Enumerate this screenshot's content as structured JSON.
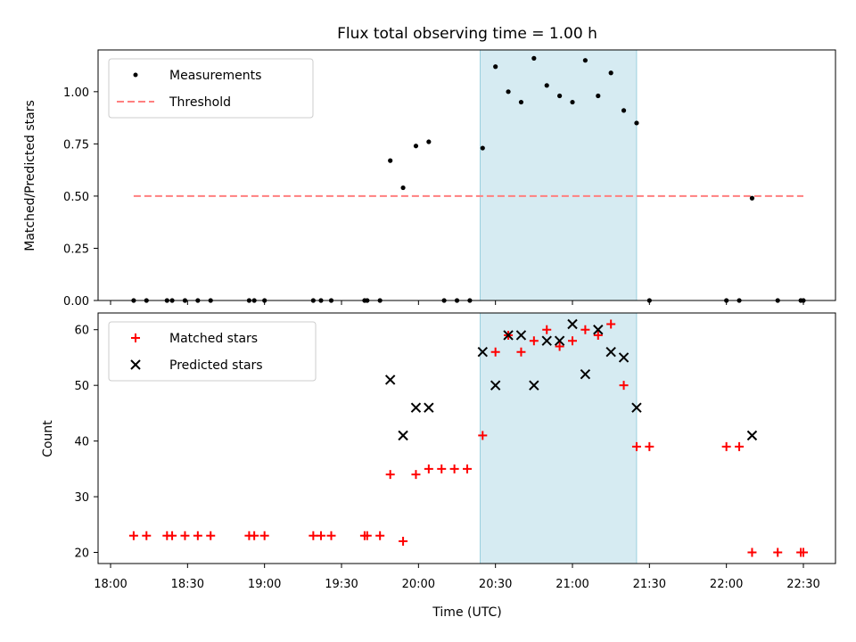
{
  "chart_data": [
    {
      "type": "scatter",
      "title": "Flux total observing time = 1.00 h",
      "ylabel": "Matched/Predicted stars",
      "xlabel": "",
      "ylim": [
        0,
        1.2
      ],
      "yticks": [
        "0.00",
        "0.25",
        "0.50",
        "0.75",
        "1.00"
      ],
      "legend": "top-left",
      "shaded_span": [
        "20:24",
        "21:25"
      ],
      "series": [
        {
          "name": "Measurements",
          "marker": "dot",
          "color": "#000000",
          "points": [
            [
              "18:09",
              0
            ],
            [
              "18:14",
              0
            ],
            [
              "18:22",
              0
            ],
            [
              "18:24",
              0
            ],
            [
              "18:29",
              0
            ],
            [
              "18:34",
              0
            ],
            [
              "18:39",
              0
            ],
            [
              "18:54",
              0
            ],
            [
              "18:56",
              0
            ],
            [
              "19:00",
              0
            ],
            [
              "19:19",
              0
            ],
            [
              "19:22",
              0
            ],
            [
              "19:26",
              0
            ],
            [
              "19:39",
              0
            ],
            [
              "19:40",
              0
            ],
            [
              "19:45",
              0
            ],
            [
              "19:49",
              0.67
            ],
            [
              "19:54",
              0.54
            ],
            [
              "19:59",
              0.74
            ],
            [
              "20:04",
              0.76
            ],
            [
              "20:10",
              0
            ],
            [
              "20:15",
              0
            ],
            [
              "20:20",
              0
            ],
            [
              "20:25",
              0.73
            ],
            [
              "20:30",
              1.12
            ],
            [
              "20:35",
              1.0
            ],
            [
              "20:40",
              0.95
            ],
            [
              "20:45",
              1.16
            ],
            [
              "20:50",
              1.03
            ],
            [
              "20:55",
              0.98
            ],
            [
              "21:00",
              0.95
            ],
            [
              "21:05",
              1.15
            ],
            [
              "21:10",
              0.98
            ],
            [
              "21:15",
              1.09
            ],
            [
              "21:20",
              0.91
            ],
            [
              "21:25",
              0.85
            ],
            [
              "21:30",
              0
            ],
            [
              "22:00",
              0
            ],
            [
              "22:05",
              0
            ],
            [
              "22:10",
              0.49
            ],
            [
              "22:20",
              0
            ],
            [
              "22:29",
              0
            ],
            [
              "22:30",
              0
            ]
          ]
        },
        {
          "name": "Threshold",
          "line": "dashed",
          "color": "#ff7f7f",
          "points": [
            [
              "18:09",
              0.5
            ],
            [
              "22:30",
              0.5
            ]
          ]
        }
      ]
    },
    {
      "type": "scatter",
      "title": "",
      "ylabel": "Count",
      "xlabel": "Time (UTC)",
      "ylim": [
        18,
        63
      ],
      "yticks": [
        "20",
        "30",
        "40",
        "50",
        "60"
      ],
      "xticks": [
        "18:00",
        "18:30",
        "19:00",
        "19:30",
        "20:00",
        "20:30",
        "21:00",
        "21:30",
        "22:00",
        "22:30"
      ],
      "legend": "top-left",
      "shaded_span": [
        "20:24",
        "21:25"
      ],
      "series": [
        {
          "name": "Matched stars",
          "marker": "plus",
          "color": "#ff0000",
          "points": [
            [
              "18:09",
              23
            ],
            [
              "18:14",
              23
            ],
            [
              "18:22",
              23
            ],
            [
              "18:24",
              23
            ],
            [
              "18:29",
              23
            ],
            [
              "18:34",
              23
            ],
            [
              "18:39",
              23
            ],
            [
              "18:54",
              23
            ],
            [
              "18:56",
              23
            ],
            [
              "19:00",
              23
            ],
            [
              "19:19",
              23
            ],
            [
              "19:22",
              23
            ],
            [
              "19:26",
              23
            ],
            [
              "19:39",
              23
            ],
            [
              "19:40",
              23
            ],
            [
              "19:45",
              23
            ],
            [
              "19:49",
              34
            ],
            [
              "19:54",
              22
            ],
            [
              "19:59",
              34
            ],
            [
              "20:04",
              35
            ],
            [
              "20:09",
              35
            ],
            [
              "20:14",
              35
            ],
            [
              "20:19",
              35
            ],
            [
              "20:25",
              41
            ],
            [
              "20:30",
              56
            ],
            [
              "20:35",
              59
            ],
            [
              "20:40",
              56
            ],
            [
              "20:45",
              58
            ],
            [
              "20:50",
              60
            ],
            [
              "20:55",
              57
            ],
            [
              "21:00",
              58
            ],
            [
              "21:05",
              60
            ],
            [
              "21:10",
              59
            ],
            [
              "21:15",
              61
            ],
            [
              "21:20",
              50
            ],
            [
              "21:25",
              39
            ],
            [
              "21:30",
              39
            ],
            [
              "22:00",
              39
            ],
            [
              "22:05",
              39
            ],
            [
              "22:10",
              20
            ],
            [
              "22:20",
              20
            ],
            [
              "22:29",
              20
            ],
            [
              "22:30",
              20
            ]
          ]
        },
        {
          "name": "Predicted stars",
          "marker": "x",
          "color": "#000000",
          "points": [
            [
              "19:49",
              51
            ],
            [
              "19:54",
              41
            ],
            [
              "19:59",
              46
            ],
            [
              "20:04",
              46
            ],
            [
              "20:25",
              56
            ],
            [
              "20:30",
              50
            ],
            [
              "20:35",
              59
            ],
            [
              "20:40",
              59
            ],
            [
              "20:45",
              50
            ],
            [
              "20:50",
              58
            ],
            [
              "20:55",
              58
            ],
            [
              "21:00",
              61
            ],
            [
              "21:05",
              52
            ],
            [
              "21:10",
              60
            ],
            [
              "21:15",
              56
            ],
            [
              "21:20",
              55
            ],
            [
              "21:25",
              46
            ],
            [
              "22:10",
              41
            ]
          ]
        }
      ]
    }
  ]
}
